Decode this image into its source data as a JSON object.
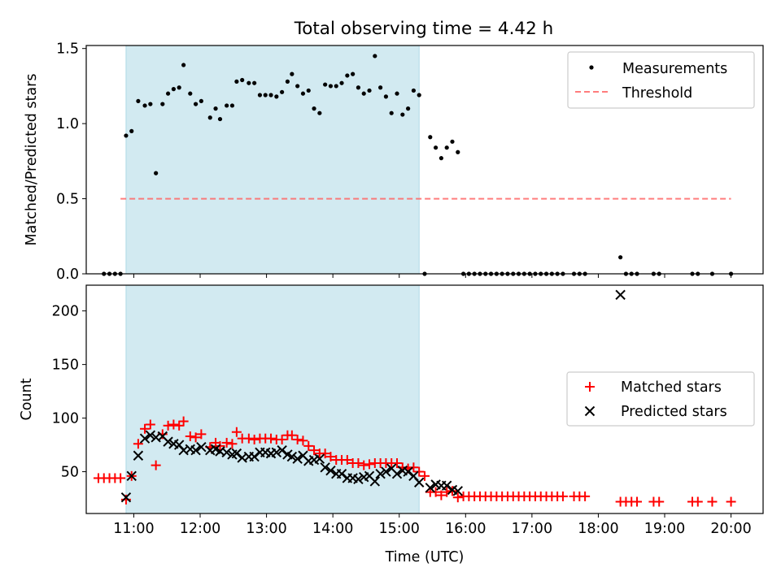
{
  "figure": {
    "title": "Total observing time = 4.42 h",
    "xlabel": "Time (UTC)",
    "x_ticks": [
      "11:00",
      "12:00",
      "13:00",
      "14:00",
      "15:00",
      "16:00",
      "17:00",
      "18:00",
      "19:00",
      "20:00"
    ],
    "highlight_span": [
      "10:53",
      "15:18"
    ],
    "colors": {
      "highlight": "#add8e6",
      "measurement": "#000000",
      "threshold": "#ff6666",
      "matched": "#ff0000",
      "predicted": "#000000"
    }
  },
  "chart_data": [
    {
      "type": "scatter",
      "title": "Total observing time = 4.42 h",
      "xlabel": "",
      "ylabel": "Matched/Predicted stars",
      "xlim": [
        "10:17",
        "20:29"
      ],
      "ylim": [
        0,
        1.52
      ],
      "y_ticks": [
        "0.0",
        "0.5",
        "1.0",
        "1.5"
      ],
      "legend": {
        "position": "top-right",
        "entries": [
          "Measurements",
          "Threshold"
        ]
      },
      "series": [
        {
          "name": "Measurements",
          "marker": "dot",
          "points": [
            [
              "10:33",
              0
            ],
            [
              "10:38",
              0
            ],
            [
              "10:43",
              0
            ],
            [
              "10:48",
              0
            ],
            [
              "10:53",
              0.92
            ],
            [
              "10:58",
              0.95
            ],
            [
              "11:04",
              1.15
            ],
            [
              "11:10",
              1.12
            ],
            [
              "11:15",
              1.13
            ],
            [
              "11:20",
              0.67
            ],
            [
              "11:26",
              1.13
            ],
            [
              "11:31",
              1.2
            ],
            [
              "11:36",
              1.23
            ],
            [
              "11:41",
              1.24
            ],
            [
              "11:45",
              1.39
            ],
            [
              "11:51",
              1.2
            ],
            [
              "11:56",
              1.13
            ],
            [
              "12:01",
              1.15
            ],
            [
              "12:09",
              1.04
            ],
            [
              "12:14",
              1.1
            ],
            [
              "12:18",
              1.03
            ],
            [
              "12:24",
              1.12
            ],
            [
              "12:29",
              1.12
            ],
            [
              "12:33",
              1.28
            ],
            [
              "12:38",
              1.29
            ],
            [
              "12:44",
              1.27
            ],
            [
              "12:49",
              1.27
            ],
            [
              "12:54",
              1.19
            ],
            [
              "12:59",
              1.19
            ],
            [
              "13:04",
              1.19
            ],
            [
              "13:09",
              1.18
            ],
            [
              "13:14",
              1.21
            ],
            [
              "13:19",
              1.28
            ],
            [
              "13:23",
              1.33
            ],
            [
              "13:28",
              1.25
            ],
            [
              "13:33",
              1.2
            ],
            [
              "13:38",
              1.22
            ],
            [
              "13:43",
              1.1
            ],
            [
              "13:48",
              1.07
            ],
            [
              "13:53",
              1.26
            ],
            [
              "13:58",
              1.25
            ],
            [
              "14:03",
              1.25
            ],
            [
              "14:08",
              1.27
            ],
            [
              "14:13",
              1.32
            ],
            [
              "14:18",
              1.33
            ],
            [
              "14:23",
              1.24
            ],
            [
              "14:28",
              1.2
            ],
            [
              "14:33",
              1.22
            ],
            [
              "14:38",
              1.45
            ],
            [
              "14:43",
              1.24
            ],
            [
              "14:48",
              1.18
            ],
            [
              "14:53",
              1.07
            ],
            [
              "14:58",
              1.2
            ],
            [
              "15:03",
              1.06
            ],
            [
              "15:08",
              1.1
            ],
            [
              "15:13",
              1.22
            ],
            [
              "15:18",
              1.19
            ],
            [
              "15:23",
              0
            ],
            [
              "15:28",
              0.91
            ],
            [
              "15:33",
              0.84
            ],
            [
              "15:38",
              0.77
            ],
            [
              "15:43",
              0.84
            ],
            [
              "15:48",
              0.88
            ],
            [
              "15:53",
              0.81
            ],
            [
              "15:58",
              0
            ],
            [
              "16:03",
              0
            ],
            [
              "16:08",
              0
            ],
            [
              "16:13",
              0
            ],
            [
              "16:18",
              0
            ],
            [
              "16:23",
              0
            ],
            [
              "16:28",
              0
            ],
            [
              "16:33",
              0
            ],
            [
              "16:38",
              0
            ],
            [
              "16:43",
              0
            ],
            [
              "16:48",
              0
            ],
            [
              "16:53",
              0
            ],
            [
              "16:58",
              0
            ],
            [
              "17:03",
              0
            ],
            [
              "17:08",
              0
            ],
            [
              "17:13",
              0
            ],
            [
              "17:18",
              0
            ],
            [
              "17:23",
              0
            ],
            [
              "17:28",
              0
            ],
            [
              "17:38",
              0
            ],
            [
              "17:43",
              0
            ],
            [
              "17:48",
              0
            ],
            [
              "18:20",
              0.11
            ],
            [
              "18:25",
              0
            ],
            [
              "18:30",
              0
            ],
            [
              "18:35",
              0
            ],
            [
              "18:50",
              0
            ],
            [
              "18:55",
              0
            ],
            [
              "19:25",
              0
            ],
            [
              "19:30",
              0
            ],
            [
              "19:43",
              0
            ],
            [
              "20:00",
              0
            ]
          ]
        },
        {
          "name": "Threshold",
          "style": "dashed",
          "points": [
            [
              "10:48",
              0.5
            ],
            [
              "20:00",
              0.5
            ]
          ]
        }
      ]
    },
    {
      "type": "scatter",
      "title": "",
      "xlabel": "Time (UTC)",
      "ylabel": "Count",
      "xlim": [
        "10:17",
        "20:29"
      ],
      "ylim": [
        11,
        224
      ],
      "y_ticks": [
        "50",
        "100",
        "150",
        "200"
      ],
      "legend": {
        "position": "center-right",
        "entries": [
          "Matched stars",
          "Predicted stars"
        ]
      },
      "series": [
        {
          "name": "Matched stars",
          "marker": "plus",
          "points": [
            [
              "10:28",
              44
            ],
            [
              "10:33",
              44
            ],
            [
              "10:38",
              44
            ],
            [
              "10:43",
              44
            ],
            [
              "10:48",
              44
            ],
            [
              "10:53",
              24
            ],
            [
              "10:58",
              46
            ],
            [
              "11:04",
              76
            ],
            [
              "11:10",
              90
            ],
            [
              "11:15",
              94
            ],
            [
              "11:20",
              56
            ],
            [
              "11:26",
              85
            ],
            [
              "11:31",
              93
            ],
            [
              "11:36",
              94
            ],
            [
              "11:41",
              93
            ],
            [
              "11:45",
              97
            ],
            [
              "11:51",
              83
            ],
            [
              "11:56",
              82
            ],
            [
              "12:01",
              85
            ],
            [
              "12:09",
              73
            ],
            [
              "12:14",
              77
            ],
            [
              "12:18",
              74
            ],
            [
              "12:24",
              77
            ],
            [
              "12:29",
              76
            ],
            [
              "12:33",
              87
            ],
            [
              "12:38",
              81
            ],
            [
              "12:44",
              81
            ],
            [
              "12:49",
              80
            ],
            [
              "12:54",
              81
            ],
            [
              "12:59",
              81
            ],
            [
              "13:04",
              81
            ],
            [
              "13:09",
              80
            ],
            [
              "13:14",
              80
            ],
            [
              "13:19",
              84
            ],
            [
              "13:23",
              84
            ],
            [
              "13:28",
              80
            ],
            [
              "13:33",
              79
            ],
            [
              "13:38",
              74
            ],
            [
              "13:43",
              70
            ],
            [
              "13:48",
              67
            ],
            [
              "13:53",
              67
            ],
            [
              "13:58",
              64
            ],
            [
              "14:03",
              61
            ],
            [
              "14:08",
              61
            ],
            [
              "14:13",
              61
            ],
            [
              "14:18",
              58
            ],
            [
              "14:23",
              58
            ],
            [
              "14:28",
              56
            ],
            [
              "14:33",
              57
            ],
            [
              "14:38",
              58
            ],
            [
              "14:43",
              58
            ],
            [
              "14:48",
              58
            ],
            [
              "14:53",
              58
            ],
            [
              "14:58",
              58
            ],
            [
              "15:03",
              54
            ],
            [
              "15:08",
              53
            ],
            [
              "15:13",
              54
            ],
            [
              "15:18",
              50
            ],
            [
              "15:23",
              46
            ],
            [
              "15:28",
              31
            ],
            [
              "15:33",
              31
            ],
            [
              "15:38",
              28
            ],
            [
              "15:43",
              31
            ],
            [
              "15:48",
              32
            ],
            [
              "15:53",
              26
            ],
            [
              "15:58",
              27
            ],
            [
              "16:03",
              27
            ],
            [
              "16:08",
              27
            ],
            [
              "16:13",
              27
            ],
            [
              "16:18",
              27
            ],
            [
              "16:23",
              27
            ],
            [
              "16:28",
              27
            ],
            [
              "16:33",
              27
            ],
            [
              "16:38",
              27
            ],
            [
              "16:43",
              27
            ],
            [
              "16:48",
              27
            ],
            [
              "16:53",
              27
            ],
            [
              "16:58",
              27
            ],
            [
              "17:03",
              27
            ],
            [
              "17:08",
              27
            ],
            [
              "17:13",
              27
            ],
            [
              "17:18",
              27
            ],
            [
              "17:23",
              27
            ],
            [
              "17:28",
              27
            ],
            [
              "17:38",
              27
            ],
            [
              "17:43",
              27
            ],
            [
              "17:48",
              27
            ],
            [
              "18:20",
              22
            ],
            [
              "18:25",
              22
            ],
            [
              "18:30",
              22
            ],
            [
              "18:35",
              22
            ],
            [
              "18:50",
              22
            ],
            [
              "18:55",
              22
            ],
            [
              "19:25",
              22
            ],
            [
              "19:30",
              22
            ],
            [
              "19:43",
              22
            ],
            [
              "20:00",
              22
            ]
          ]
        },
        {
          "name": "Predicted stars",
          "marker": "x",
          "points": [
            [
              "10:53",
              26
            ],
            [
              "10:58",
              46
            ],
            [
              "11:04",
              65
            ],
            [
              "11:10",
              81
            ],
            [
              "11:15",
              84
            ],
            [
              "11:20",
              82
            ],
            [
              "11:26",
              83
            ],
            [
              "11:31",
              78
            ],
            [
              "11:36",
              76
            ],
            [
              "11:41",
              75
            ],
            [
              "11:45",
              70
            ],
            [
              "11:51",
              71
            ],
            [
              "11:56",
              70
            ],
            [
              "12:01",
              73
            ],
            [
              "12:09",
              70
            ],
            [
              "12:14",
              71
            ],
            [
              "12:18",
              69
            ],
            [
              "12:24",
              68
            ],
            [
              "12:29",
              66
            ],
            [
              "12:33",
              67
            ],
            [
              "12:38",
              63
            ],
            [
              "12:44",
              64
            ],
            [
              "12:49",
              64
            ],
            [
              "12:54",
              68
            ],
            [
              "12:59",
              68
            ],
            [
              "13:04",
              67
            ],
            [
              "13:09",
              68
            ],
            [
              "13:14",
              70
            ],
            [
              "13:19",
              66
            ],
            [
              "13:23",
              64
            ],
            [
              "13:28",
              62
            ],
            [
              "13:33",
              65
            ],
            [
              "13:38",
              60
            ],
            [
              "13:43",
              61
            ],
            [
              "13:48",
              62
            ],
            [
              "13:53",
              54
            ],
            [
              "13:58",
              51
            ],
            [
              "14:03",
              48
            ],
            [
              "14:08",
              48
            ],
            [
              "14:13",
              44
            ],
            [
              "14:18",
              44
            ],
            [
              "14:23",
              43
            ],
            [
              "14:28",
              45
            ],
            [
              "14:33",
              46
            ],
            [
              "14:38",
              41
            ],
            [
              "14:43",
              48
            ],
            [
              "14:48",
              50
            ],
            [
              "14:53",
              53
            ],
            [
              "14:58",
              48
            ],
            [
              "15:03",
              51
            ],
            [
              "15:08",
              50
            ],
            [
              "15:13",
              46
            ],
            [
              "15:18",
              40
            ],
            [
              "15:28",
              35
            ],
            [
              "15:33",
              38
            ],
            [
              "15:38",
              37
            ],
            [
              "15:43",
              37
            ],
            [
              "15:48",
              33
            ],
            [
              "15:53",
              32
            ],
            [
              "18:20",
              215
            ]
          ]
        }
      ]
    }
  ]
}
